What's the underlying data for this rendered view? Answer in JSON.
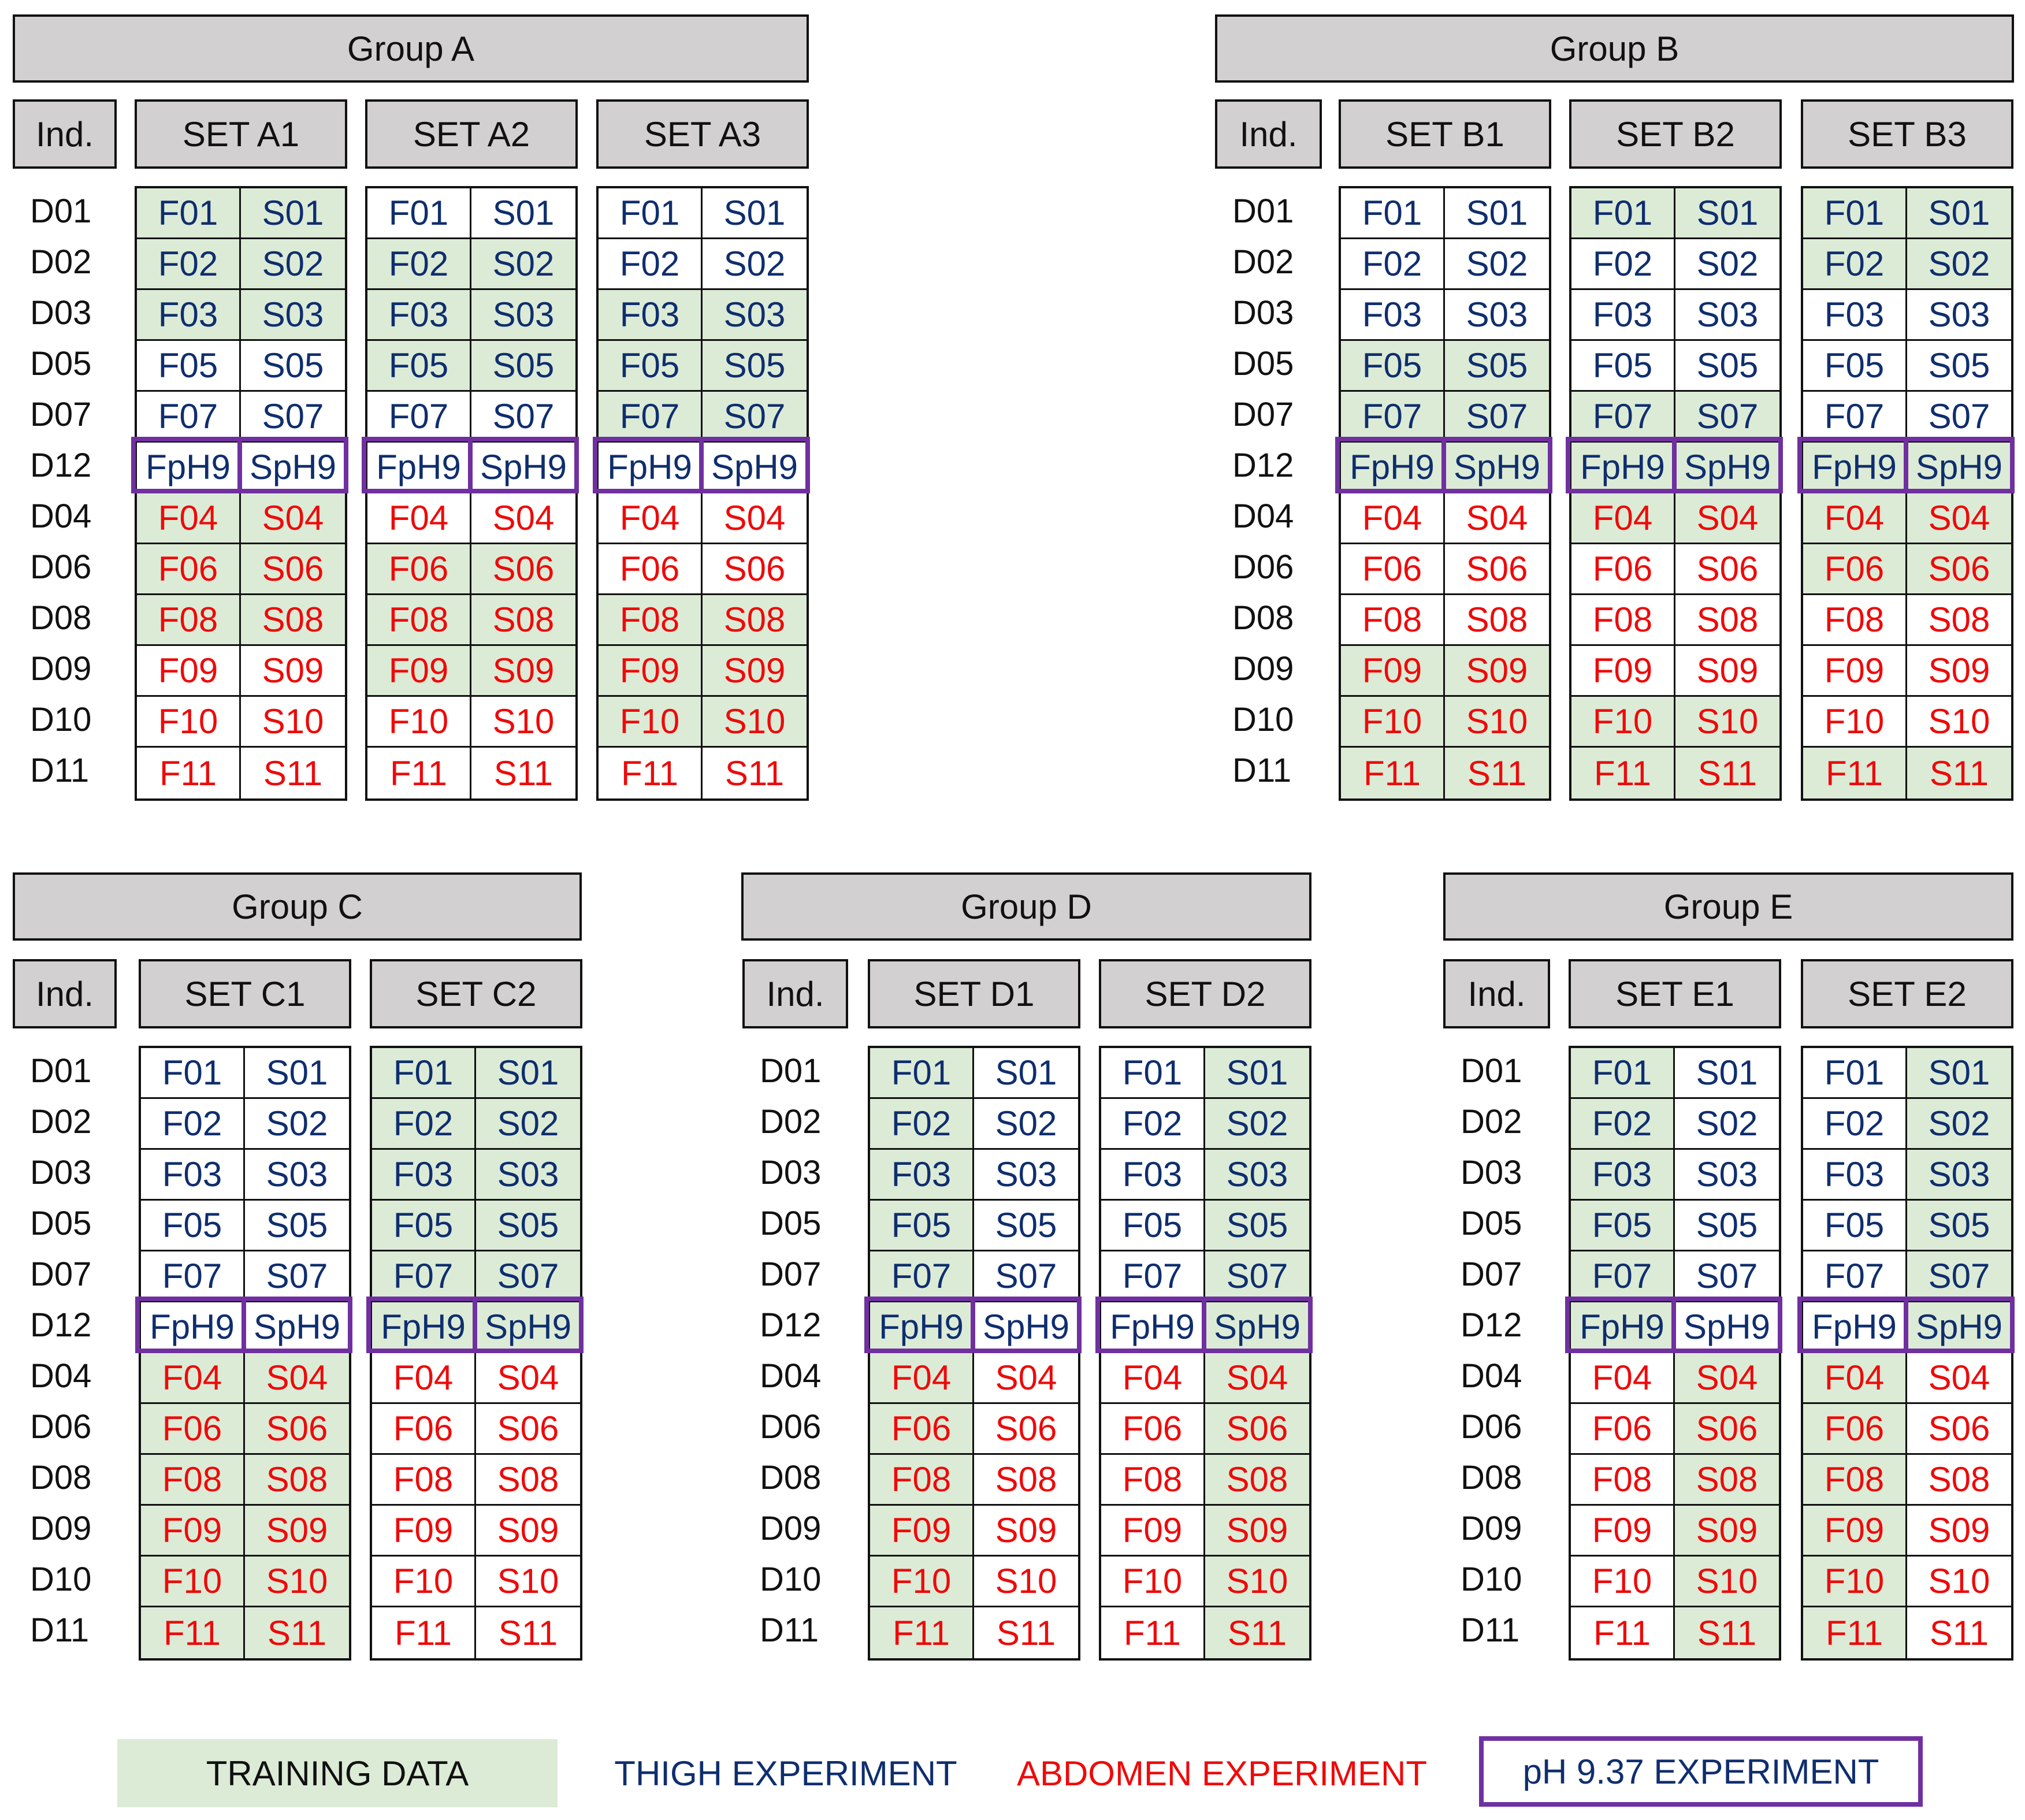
{
  "colors": {
    "training": "#dcebd6",
    "thigh": "#0f2e6e",
    "abdomen": "#ee0a0a",
    "ph": "#7030a0",
    "header": "#d3d0d1"
  },
  "ind_header": "Ind.",
  "rows": [
    "D01",
    "D02",
    "D03",
    "D05",
    "D07",
    "D12",
    "D04",
    "D06",
    "D08",
    "D09",
    "D10",
    "D11"
  ],
  "row_types": [
    "thigh",
    "thigh",
    "thigh",
    "thigh",
    "thigh",
    "ph",
    "abd",
    "abd",
    "abd",
    "abd",
    "abd",
    "abd"
  ],
  "f_labels": [
    "F01",
    "F02",
    "F03",
    "F05",
    "F07",
    "FpH9",
    "F04",
    "F06",
    "F08",
    "F09",
    "F10",
    "F11"
  ],
  "s_labels": [
    "S01",
    "S02",
    "S03",
    "S05",
    "S07",
    "SpH9",
    "S04",
    "S06",
    "S08",
    "S09",
    "S10",
    "S11"
  ],
  "groups": [
    {
      "title": "Group A",
      "sets": [
        {
          "name": "SET A1",
          "green_f": [
            1,
            1,
            1,
            0,
            0,
            0,
            1,
            1,
            1,
            0,
            0,
            0
          ],
          "green_s": [
            1,
            1,
            1,
            0,
            0,
            0,
            1,
            1,
            1,
            0,
            0,
            0
          ]
        },
        {
          "name": "SET A2",
          "green_f": [
            0,
            1,
            1,
            1,
            0,
            0,
            0,
            1,
            1,
            1,
            0,
            0
          ],
          "green_s": [
            0,
            1,
            1,
            1,
            0,
            0,
            0,
            1,
            1,
            1,
            0,
            0
          ]
        },
        {
          "name": "SET A3",
          "green_f": [
            0,
            0,
            1,
            1,
            1,
            0,
            0,
            0,
            1,
            1,
            1,
            0
          ],
          "green_s": [
            0,
            0,
            1,
            1,
            1,
            0,
            0,
            0,
            1,
            1,
            1,
            0
          ]
        }
      ]
    },
    {
      "title": "Group B",
      "sets": [
        {
          "name": "SET B1",
          "green_f": [
            0,
            0,
            0,
            1,
            1,
            1,
            0,
            0,
            0,
            1,
            1,
            1
          ],
          "green_s": [
            0,
            0,
            0,
            1,
            1,
            1,
            0,
            0,
            0,
            1,
            1,
            1
          ]
        },
        {
          "name": "SET B2",
          "green_f": [
            1,
            0,
            0,
            0,
            1,
            1,
            1,
            0,
            0,
            0,
            1,
            1
          ],
          "green_s": [
            1,
            0,
            0,
            0,
            1,
            1,
            1,
            0,
            0,
            0,
            1,
            1
          ]
        },
        {
          "name": "SET B3",
          "green_f": [
            1,
            1,
            0,
            0,
            0,
            1,
            1,
            1,
            0,
            0,
            0,
            1
          ],
          "green_s": [
            1,
            1,
            0,
            0,
            0,
            1,
            1,
            1,
            0,
            0,
            0,
            1
          ]
        }
      ]
    },
    {
      "title": "Group C",
      "sets": [
        {
          "name": "SET C1",
          "green_f": [
            0,
            0,
            0,
            0,
            0,
            0,
            1,
            1,
            1,
            1,
            1,
            1
          ],
          "green_s": [
            0,
            0,
            0,
            0,
            0,
            0,
            1,
            1,
            1,
            1,
            1,
            1
          ]
        },
        {
          "name": "SET C2",
          "green_f": [
            1,
            1,
            1,
            1,
            1,
            1,
            0,
            0,
            0,
            0,
            0,
            0
          ],
          "green_s": [
            1,
            1,
            1,
            1,
            1,
            1,
            0,
            0,
            0,
            0,
            0,
            0
          ]
        }
      ]
    },
    {
      "title": "Group D",
      "sets": [
        {
          "name": "SET D1",
          "green_f": [
            1,
            1,
            1,
            1,
            1,
            1,
            1,
            1,
            1,
            1,
            1,
            1
          ],
          "green_s": [
            0,
            0,
            0,
            0,
            0,
            0,
            0,
            0,
            0,
            0,
            0,
            0
          ]
        },
        {
          "name": "SET D2",
          "green_f": [
            0,
            0,
            0,
            0,
            0,
            0,
            0,
            0,
            0,
            0,
            0,
            0
          ],
          "green_s": [
            1,
            1,
            1,
            1,
            1,
            1,
            1,
            1,
            1,
            1,
            1,
            1
          ]
        }
      ]
    },
    {
      "title": "Group E",
      "sets": [
        {
          "name": "SET E1",
          "green_f": [
            1,
            1,
            1,
            1,
            1,
            1,
            0,
            0,
            0,
            0,
            0,
            0
          ],
          "green_s": [
            0,
            0,
            0,
            0,
            0,
            0,
            1,
            1,
            1,
            1,
            1,
            1
          ]
        },
        {
          "name": "SET E2",
          "green_f": [
            0,
            0,
            0,
            0,
            0,
            0,
            1,
            1,
            1,
            1,
            1,
            1
          ],
          "green_s": [
            1,
            1,
            1,
            1,
            1,
            1,
            0,
            0,
            0,
            0,
            0,
            0
          ]
        }
      ]
    }
  ],
  "legend": {
    "training": "TRAINING DATA",
    "thigh": "THIGH EXPERIMENT",
    "abdomen": "ABDOMEN EXPERIMENT",
    "ph": "pH 9.37 EXPERIMENT"
  }
}
